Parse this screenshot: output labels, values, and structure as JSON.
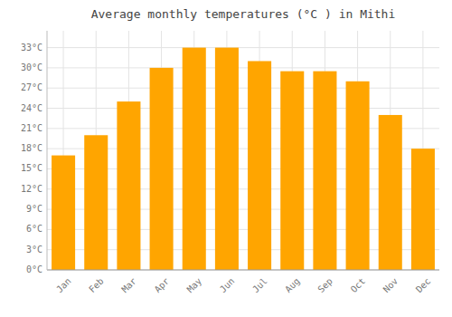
{
  "chart_data": {
    "type": "bar",
    "title": "Average monthly temperatures (°C ) in Mithi",
    "categories": [
      "Jan",
      "Feb",
      "Mar",
      "Apr",
      "May",
      "Jun",
      "Jul",
      "Aug",
      "Sep",
      "Oct",
      "Nov",
      "Dec"
    ],
    "values": [
      17,
      20,
      25,
      30,
      33,
      33,
      31,
      29.5,
      29.5,
      28,
      23,
      18
    ],
    "color": "#FFA500",
    "ylim": [
      0,
      35.5
    ],
    "yticks": [
      {
        "value": 0,
        "label": "0°C"
      },
      {
        "value": 3,
        "label": "3°C"
      },
      {
        "value": 6,
        "label": "6°C"
      },
      {
        "value": 9,
        "label": "9°C"
      },
      {
        "value": 12,
        "label": "12°C"
      },
      {
        "value": 15,
        "label": "15°C"
      },
      {
        "value": 18,
        "label": "18°C"
      },
      {
        "value": 21,
        "label": "21°C"
      },
      {
        "value": 24,
        "label": "24°C"
      },
      {
        "value": 27,
        "label": "27°C"
      },
      {
        "value": 30,
        "label": "30°C"
      },
      {
        "value": 33,
        "label": "33°C"
      }
    ],
    "grid": true
  }
}
